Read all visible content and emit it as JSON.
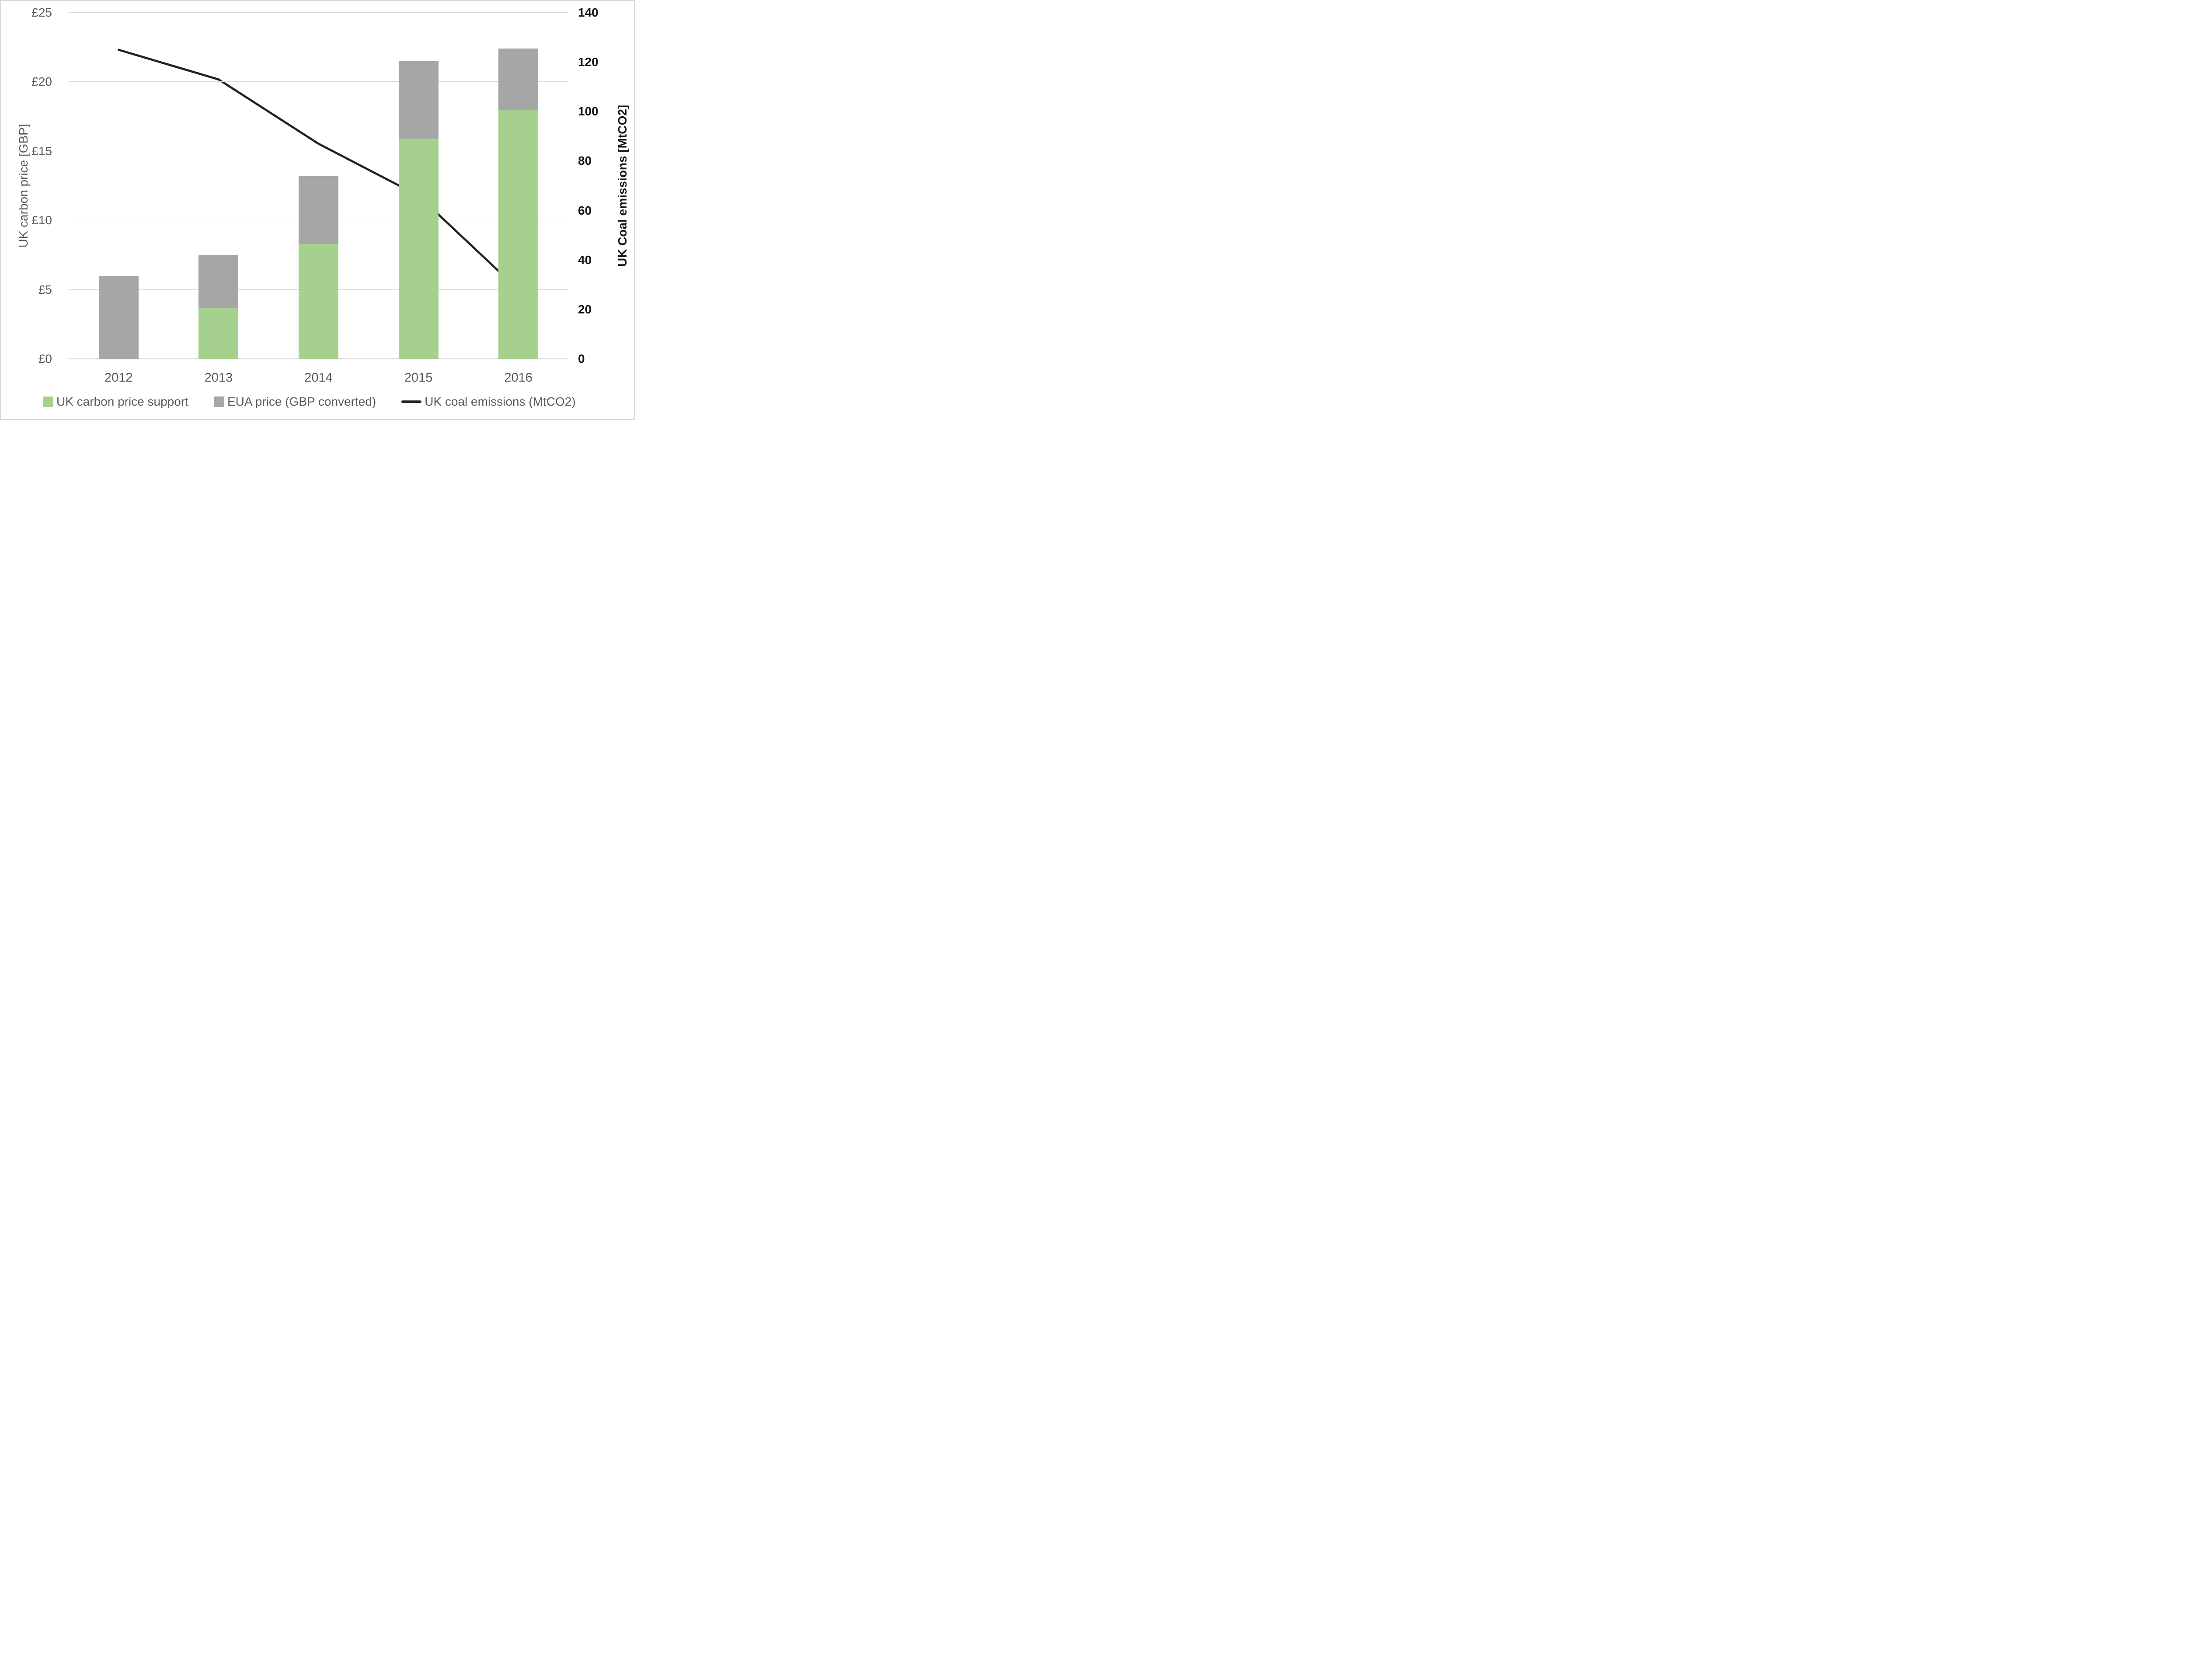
{
  "chart_data": {
    "type": "combo",
    "title": "",
    "categories": [
      "2012",
      "2013",
      "2014",
      "2015",
      "2016"
    ],
    "bar_series": [
      {
        "name": "UK carbon price support",
        "type": "bar",
        "stacked": true,
        "color": "#a5d08d",
        "values": [
          0,
          3.7,
          8.3,
          15.9,
          18.0
        ]
      },
      {
        "name": "EUA price (GBP converted)",
        "type": "bar",
        "stacked": true,
        "color": "#a6a6a6",
        "values": [
          6.0,
          3.8,
          4.9,
          5.6,
          4.4
        ]
      }
    ],
    "line_series": {
      "name": "UK coal emissions (MtCO2)",
      "type": "line",
      "axis": "right",
      "color": "#1f2125",
      "values": [
        125,
        113,
        87,
        66,
        28
      ]
    },
    "axes": {
      "left": {
        "title": "UK carbon price [GBP]",
        "min": 0,
        "max": 25,
        "tick_values": [
          0,
          5,
          10,
          15,
          20,
          25
        ],
        "tick_labels": [
          "£0",
          "£5",
          "£10",
          "£15",
          "£20",
          "£25"
        ]
      },
      "right": {
        "title": "UK Coal emissions [MtCO2]",
        "min": 0,
        "max": 140,
        "tick_values": [
          0,
          20,
          40,
          60,
          80,
          100,
          120,
          140
        ],
        "tick_labels": [
          "0",
          "20",
          "40",
          "60",
          "80",
          "100",
          "120",
          "140"
        ]
      }
    },
    "grid": true,
    "legend_position": "bottom"
  },
  "legend": {
    "items": [
      {
        "label": "UK carbon price support",
        "marker": "square",
        "color": "#a5d08d"
      },
      {
        "label": "EUA price (GBP converted)",
        "marker": "square",
        "color": "#a6a6a6"
      },
      {
        "label": "UK coal emissions (MtCO2)",
        "marker": "line",
        "color": "#1f2125"
      }
    ]
  },
  "colors": {
    "grid": "#d9d9d9",
    "axis_line": "#c9c9c9",
    "left_text": "#595959",
    "right_text": "#141414",
    "background": "#ffffff",
    "border": "#d9d9d9"
  }
}
